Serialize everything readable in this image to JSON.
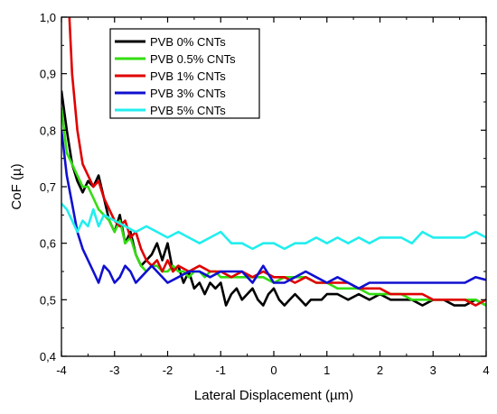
{
  "chart_data": {
    "type": "line",
    "title": "",
    "xlabel": "Lateral Displacement (µm)",
    "ylabel": "CoF (µ)",
    "xlim": [
      -4,
      4
    ],
    "ylim": [
      0.4,
      1.0
    ],
    "x_ticks": [
      -4,
      -3,
      -2,
      -1,
      0,
      1,
      2,
      3,
      4
    ],
    "x_tick_labels": [
      "-4",
      "-3",
      "-2",
      "-1",
      "0",
      "1",
      "2",
      "3",
      "4"
    ],
    "y_ticks": [
      0.4,
      0.5,
      0.6,
      0.7,
      0.8,
      0.9,
      1.0
    ],
    "y_tick_labels": [
      "0,4",
      "0,5",
      "0,6",
      "0,7",
      "0,8",
      "0,9",
      "1,0"
    ],
    "legend_position": "top-left",
    "grid": false,
    "series": [
      {
        "name": "PVB 0% CNTs",
        "color": "#000000",
        "x": [
          -4.0,
          -3.9,
          -3.8,
          -3.7,
          -3.6,
          -3.5,
          -3.4,
          -3.3,
          -3.2,
          -3.1,
          -3.0,
          -2.9,
          -2.8,
          -2.7,
          -2.6,
          -2.5,
          -2.4,
          -2.3,
          -2.2,
          -2.1,
          -2.0,
          -1.9,
          -1.8,
          -1.7,
          -1.6,
          -1.5,
          -1.4,
          -1.3,
          -1.2,
          -1.1,
          -1.0,
          -0.9,
          -0.8,
          -0.7,
          -0.6,
          -0.5,
          -0.4,
          -0.3,
          -0.2,
          -0.1,
          0.0,
          0.1,
          0.2,
          0.3,
          0.4,
          0.5,
          0.6,
          0.7,
          0.8,
          0.9,
          1.0,
          1.2,
          1.4,
          1.6,
          1.8,
          2.0,
          2.2,
          2.4,
          2.6,
          2.8,
          3.0,
          3.2,
          3.4,
          3.6,
          3.8,
          4.0
        ],
        "y": [
          0.87,
          0.8,
          0.74,
          0.71,
          0.69,
          0.71,
          0.7,
          0.72,
          0.68,
          0.64,
          0.62,
          0.65,
          0.6,
          0.62,
          0.58,
          0.56,
          0.57,
          0.58,
          0.6,
          0.57,
          0.6,
          0.55,
          0.56,
          0.53,
          0.55,
          0.52,
          0.53,
          0.51,
          0.53,
          0.52,
          0.53,
          0.49,
          0.51,
          0.52,
          0.5,
          0.51,
          0.52,
          0.5,
          0.49,
          0.51,
          0.52,
          0.5,
          0.49,
          0.5,
          0.51,
          0.5,
          0.49,
          0.5,
          0.5,
          0.5,
          0.51,
          0.51,
          0.5,
          0.51,
          0.5,
          0.51,
          0.5,
          0.5,
          0.5,
          0.49,
          0.5,
          0.5,
          0.49,
          0.49,
          0.5,
          0.49
        ]
      },
      {
        "name": "PVB 0.5% CNTs",
        "color": "#33dd11",
        "x": [
          -4.0,
          -3.9,
          -3.8,
          -3.7,
          -3.6,
          -3.5,
          -3.4,
          -3.3,
          -3.2,
          -3.1,
          -3.0,
          -2.9,
          -2.8,
          -2.7,
          -2.6,
          -2.5,
          -2.4,
          -2.3,
          -2.2,
          -2.1,
          -2.0,
          -1.9,
          -1.8,
          -1.7,
          -1.6,
          -1.5,
          -1.4,
          -1.3,
          -1.2,
          -1.1,
          -1.0,
          -0.8,
          -0.6,
          -0.4,
          -0.2,
          0.0,
          0.2,
          0.4,
          0.6,
          0.8,
          1.0,
          1.2,
          1.4,
          1.6,
          1.8,
          2.0,
          2.2,
          2.4,
          2.6,
          2.8,
          3.0,
          3.2,
          3.4,
          3.6,
          3.8,
          4.0
        ],
        "y": [
          0.84,
          0.76,
          0.74,
          0.72,
          0.7,
          0.7,
          0.68,
          0.66,
          0.65,
          0.64,
          0.62,
          0.64,
          0.6,
          0.61,
          0.58,
          0.56,
          0.55,
          0.56,
          0.56,
          0.55,
          0.55,
          0.56,
          0.55,
          0.55,
          0.54,
          0.55,
          0.55,
          0.54,
          0.55,
          0.55,
          0.54,
          0.54,
          0.54,
          0.54,
          0.54,
          0.53,
          0.54,
          0.54,
          0.54,
          0.53,
          0.53,
          0.52,
          0.52,
          0.52,
          0.51,
          0.51,
          0.51,
          0.51,
          0.5,
          0.5,
          0.5,
          0.5,
          0.5,
          0.5,
          0.5,
          0.49
        ]
      },
      {
        "name": "PVB 1% CNTs",
        "color": "#e00000",
        "x": [
          -3.85,
          -3.8,
          -3.7,
          -3.6,
          -3.5,
          -3.4,
          -3.3,
          -3.2,
          -3.1,
          -3.0,
          -2.9,
          -2.8,
          -2.7,
          -2.6,
          -2.5,
          -2.4,
          -2.3,
          -2.2,
          -2.1,
          -2.0,
          -1.9,
          -1.8,
          -1.6,
          -1.4,
          -1.2,
          -1.0,
          -0.8,
          -0.6,
          -0.4,
          -0.2,
          0.0,
          0.2,
          0.4,
          0.6,
          0.8,
          1.0,
          1.2,
          1.4,
          1.6,
          1.8,
          2.0,
          2.2,
          2.4,
          2.6,
          2.8,
          3.0,
          3.2,
          3.4,
          3.6,
          3.8,
          4.0
        ],
        "y": [
          1.0,
          0.9,
          0.8,
          0.74,
          0.72,
          0.7,
          0.71,
          0.68,
          0.66,
          0.64,
          0.63,
          0.64,
          0.61,
          0.62,
          0.59,
          0.57,
          0.56,
          0.57,
          0.55,
          0.57,
          0.55,
          0.56,
          0.55,
          0.56,
          0.55,
          0.55,
          0.54,
          0.55,
          0.54,
          0.55,
          0.54,
          0.54,
          0.53,
          0.54,
          0.53,
          0.53,
          0.53,
          0.53,
          0.52,
          0.52,
          0.52,
          0.51,
          0.51,
          0.51,
          0.51,
          0.5,
          0.5,
          0.5,
          0.5,
          0.49,
          0.5
        ]
      },
      {
        "name": "PVB 3% CNTs",
        "color": "#1010d0",
        "x": [
          -4.0,
          -3.9,
          -3.8,
          -3.7,
          -3.6,
          -3.5,
          -3.4,
          -3.3,
          -3.2,
          -3.1,
          -3.0,
          -2.9,
          -2.8,
          -2.7,
          -2.6,
          -2.5,
          -2.4,
          -2.3,
          -2.2,
          -2.0,
          -1.8,
          -1.6,
          -1.4,
          -1.2,
          -1.0,
          -0.8,
          -0.6,
          -0.4,
          -0.2,
          0.0,
          0.2,
          0.4,
          0.6,
          0.8,
          1.0,
          1.2,
          1.4,
          1.6,
          1.8,
          2.0,
          2.2,
          2.4,
          2.6,
          2.8,
          3.0,
          3.2,
          3.4,
          3.6,
          3.8,
          4.0
        ],
        "y": [
          0.8,
          0.72,
          0.67,
          0.62,
          0.59,
          0.57,
          0.55,
          0.53,
          0.56,
          0.55,
          0.53,
          0.54,
          0.56,
          0.55,
          0.53,
          0.54,
          0.55,
          0.56,
          0.55,
          0.53,
          0.54,
          0.55,
          0.55,
          0.54,
          0.55,
          0.55,
          0.55,
          0.53,
          0.56,
          0.53,
          0.53,
          0.54,
          0.55,
          0.54,
          0.53,
          0.54,
          0.53,
          0.52,
          0.53,
          0.53,
          0.53,
          0.53,
          0.53,
          0.53,
          0.53,
          0.53,
          0.53,
          0.53,
          0.54,
          0.535
        ]
      },
      {
        "name": "PVB 5% CNTs",
        "color": "#22eeee",
        "x": [
          -4.0,
          -3.9,
          -3.8,
          -3.7,
          -3.6,
          -3.5,
          -3.4,
          -3.3,
          -3.2,
          -3.0,
          -2.8,
          -2.6,
          -2.4,
          -2.2,
          -2.0,
          -1.8,
          -1.6,
          -1.4,
          -1.2,
          -1.0,
          -0.8,
          -0.6,
          -0.4,
          -0.2,
          0.0,
          0.2,
          0.4,
          0.6,
          0.8,
          1.0,
          1.2,
          1.4,
          1.6,
          1.8,
          2.0,
          2.2,
          2.4,
          2.6,
          2.8,
          3.0,
          3.2,
          3.4,
          3.6,
          3.8,
          4.0
        ],
        "y": [
          0.67,
          0.66,
          0.64,
          0.62,
          0.64,
          0.63,
          0.66,
          0.63,
          0.65,
          0.64,
          0.63,
          0.62,
          0.63,
          0.62,
          0.61,
          0.62,
          0.61,
          0.6,
          0.61,
          0.62,
          0.6,
          0.6,
          0.59,
          0.6,
          0.6,
          0.59,
          0.6,
          0.6,
          0.61,
          0.6,
          0.61,
          0.6,
          0.61,
          0.6,
          0.61,
          0.61,
          0.61,
          0.6,
          0.62,
          0.61,
          0.61,
          0.61,
          0.61,
          0.62,
          0.61
        ]
      }
    ]
  }
}
